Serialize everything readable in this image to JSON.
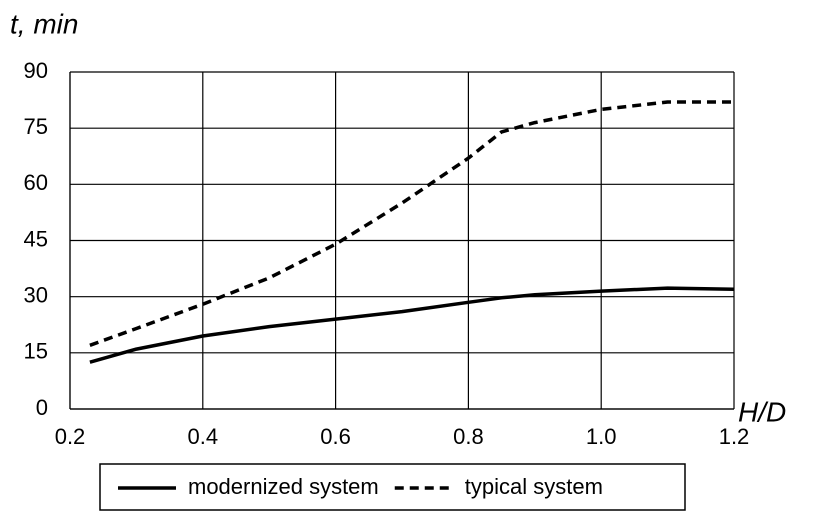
{
  "chart_data": {
    "type": "line",
    "y_label": "t, min",
    "x_label": "H/D",
    "x": [
      0.23,
      0.3,
      0.4,
      0.5,
      0.6,
      0.7,
      0.8,
      0.85,
      0.9,
      1.0,
      1.1,
      1.2
    ],
    "series": [
      {
        "name": "modernized system",
        "color": "#000000",
        "dash": "solid",
        "values": [
          12.5,
          16,
          19.5,
          22,
          24,
          26,
          28.5,
          29.7,
          30.5,
          31.5,
          32.3,
          32
        ]
      },
      {
        "name": "typical system",
        "color": "#000000",
        "dash": "dashed",
        "values": [
          17,
          21.5,
          28,
          35,
          44,
          55,
          67,
          74,
          76.5,
          80,
          82,
          82
        ]
      }
    ],
    "xlim": [
      0.2,
      1.2
    ],
    "ylim": [
      0,
      90
    ],
    "xticks": [
      0.2,
      0.4,
      0.6,
      0.8,
      {
        "value": 1,
        "label": "1.0"
      },
      1.2
    ],
    "yticks": [
      0,
      15,
      30,
      45,
      60,
      75,
      90
    ],
    "grid": true,
    "legend": "bottom"
  }
}
